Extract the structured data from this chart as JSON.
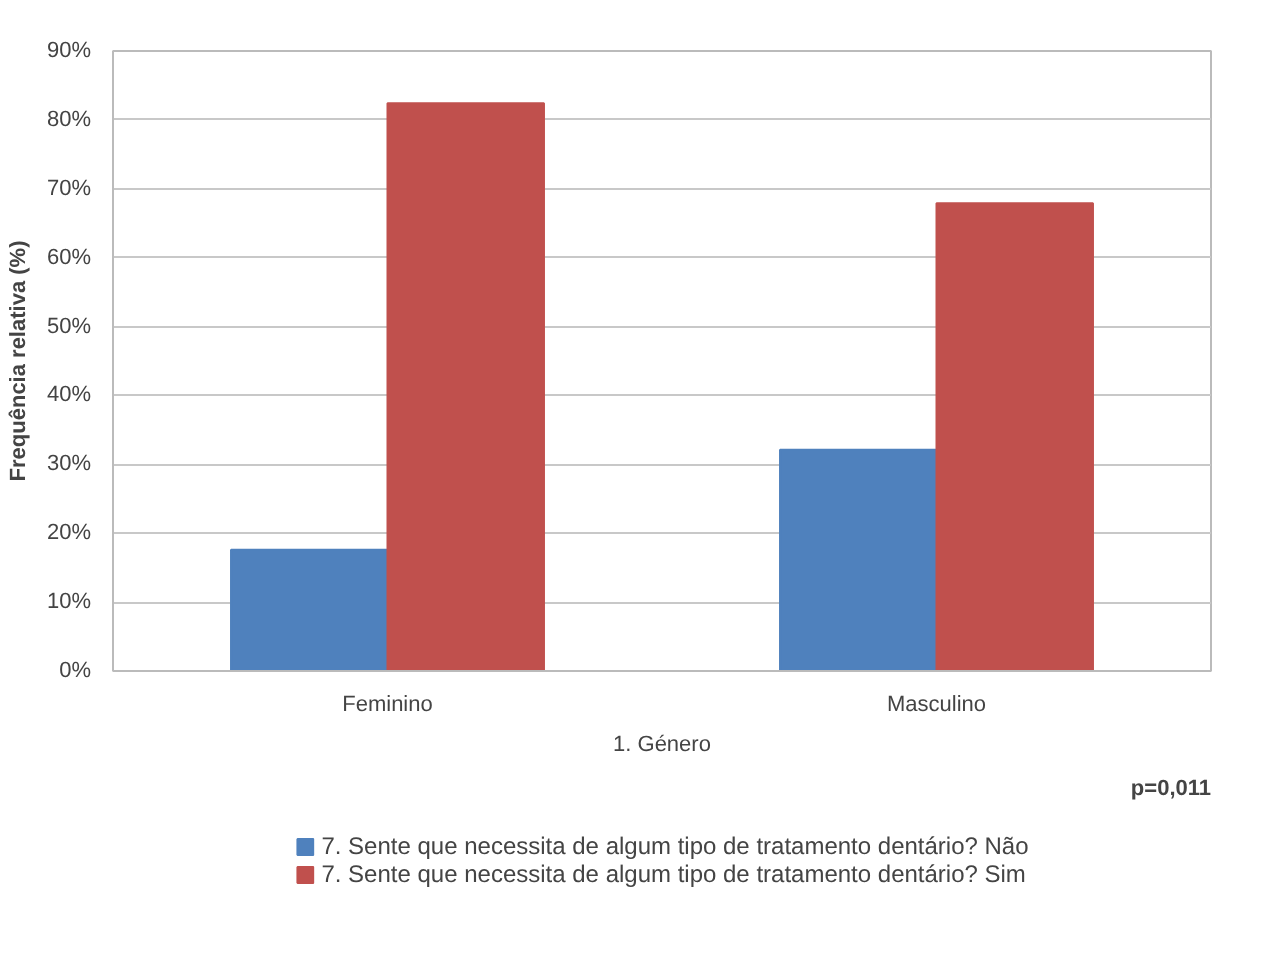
{
  "chart_data": {
    "type": "bar",
    "xlabel": "1. Género",
    "ylabel": "Frequência relativa (%)",
    "categories": [
      "Feminino",
      "Masculino"
    ],
    "series": [
      {
        "name": "7. Sente que necessita de algum tipo de tratamento dentário? Não",
        "color": "#4f81bd",
        "values": [
          17.6,
          32.1
        ]
      },
      {
        "name": "7. Sente que necessita de algum tipo de tratamento dentário? Sim",
        "color": "#c0504d",
        "values": [
          82.4,
          67.9
        ]
      }
    ],
    "ylim": [
      0,
      90
    ],
    "yticks": [
      {
        "value": 0,
        "label": "0%"
      },
      {
        "value": 10,
        "label": "10%"
      },
      {
        "value": 20,
        "label": "20%"
      },
      {
        "value": 30,
        "label": "30%"
      },
      {
        "value": 40,
        "label": "40%"
      },
      {
        "value": 50,
        "label": "50%"
      },
      {
        "value": 60,
        "label": "60%"
      },
      {
        "value": 70,
        "label": "70%"
      },
      {
        "value": 80,
        "label": "80%"
      },
      {
        "value": 90,
        "label": "90%"
      }
    ],
    "grid": "y",
    "legend": "bottom",
    "annotations": [
      "p=0,011"
    ]
  }
}
